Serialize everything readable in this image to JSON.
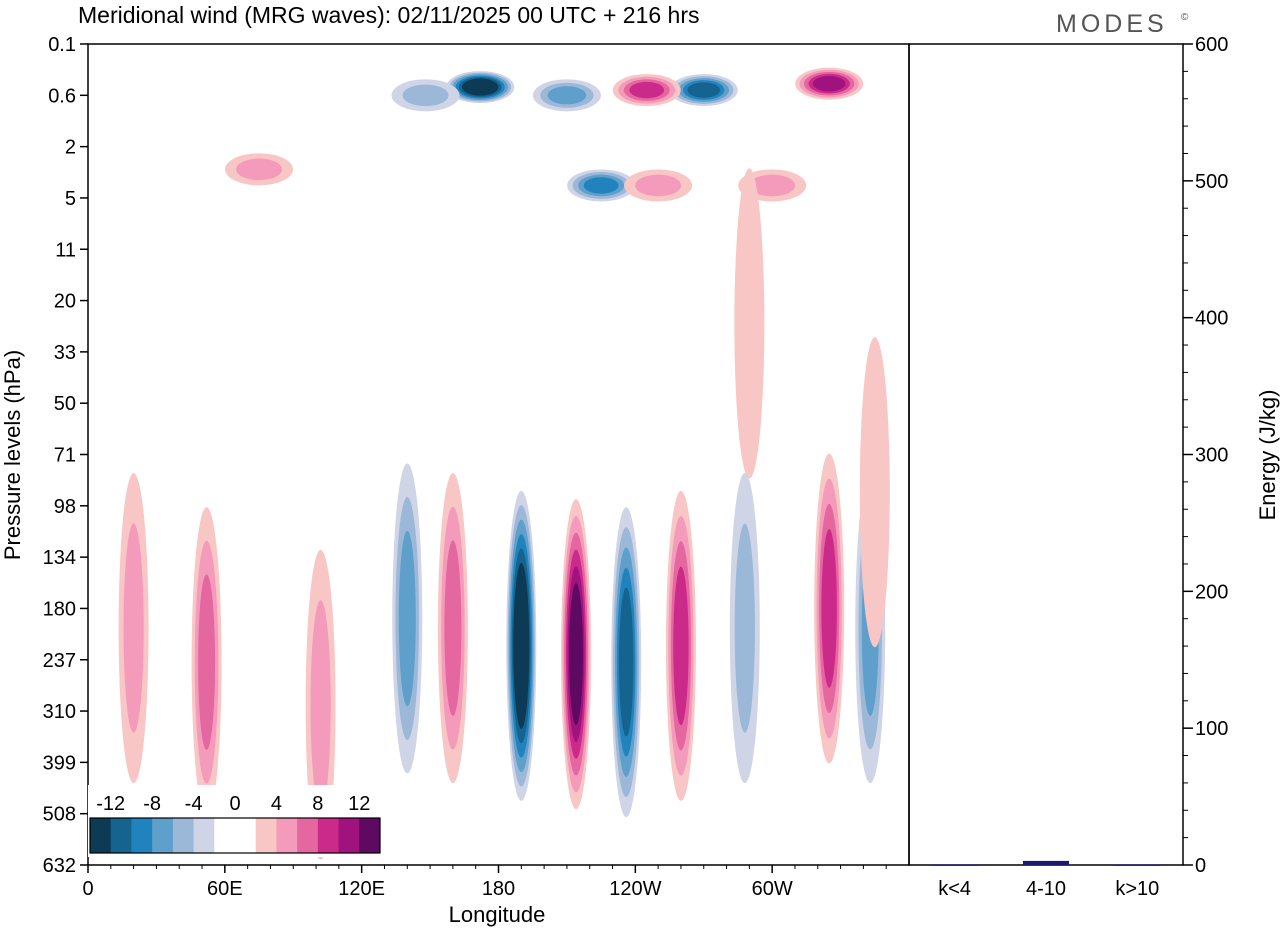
{
  "brand": {
    "logo_text": "MODES",
    "mark": "©"
  },
  "chart_data": [
    {
      "type": "heatmap",
      "title": "Meridional wind (MRG waves):  02/11/2025  00 UTC  + 216 hrs",
      "xlabel": "Longitude",
      "ylabel": "Pressure levels (hPa)",
      "x_ticks": [
        "0",
        "60E",
        "120E",
        "180",
        "120W",
        "60W"
      ],
      "x_tick_degrees": [
        0,
        60,
        120,
        180,
        240,
        300
      ],
      "xlim": [
        0,
        360
      ],
      "y_ticks": [
        "0.1",
        "0.6",
        "2",
        "5",
        "11",
        "20",
        "33",
        "50",
        "71",
        "98",
        "134",
        "180",
        "237",
        "310",
        "399",
        "508",
        "632"
      ],
      "y_order": "top-to-bottom",
      "colorbar": {
        "labels": [
          "-12",
          "-8",
          "-4",
          "0",
          "4",
          "8",
          "12"
        ],
        "levels": [
          -14,
          -12,
          -10,
          -8,
          -6,
          -4,
          -2,
          0,
          2,
          4,
          6,
          8,
          10,
          12,
          14
        ],
        "colors": [
          "#0d3b55",
          "#15638f",
          "#2183bd",
          "#5e9fcb",
          "#9bb8d8",
          "#cfd4e6",
          "#ffffff",
          "#ffffff",
          "#f8c6c4",
          "#f49bbb",
          "#e5679f",
          "#cc2a8a",
          "#a0127e",
          "#5e0a63"
        ]
      },
      "features": [
        {
          "lon": 172,
          "level": 0.45,
          "value": -14
        },
        {
          "lon": 148,
          "level": 0.6,
          "value": -4
        },
        {
          "lon": 270,
          "level": 0.5,
          "value": -10
        },
        {
          "lon": 245,
          "level": 0.5,
          "value": 8
        },
        {
          "lon": 325,
          "level": 0.4,
          "value": 10
        },
        {
          "lon": 210,
          "level": 0.6,
          "value": -6
        },
        {
          "lon": 225,
          "level": 4,
          "value": -8
        },
        {
          "lon": 250,
          "level": 4,
          "value": 4
        },
        {
          "lon": 300,
          "level": 4,
          "value": 4
        },
        {
          "lon": 75,
          "level": 3,
          "value": 4
        },
        {
          "lon": 290,
          "level": 25,
          "value": 2
        },
        {
          "lon": 190,
          "level": 220,
          "value": -14
        },
        {
          "lon": 214,
          "level": 230,
          "value": 12
        },
        {
          "lon": 236,
          "level": 240,
          "value": -10
        },
        {
          "lon": 260,
          "level": 220,
          "value": 8
        },
        {
          "lon": 160,
          "level": 200,
          "value": 6
        },
        {
          "lon": 140,
          "level": 190,
          "value": -6
        },
        {
          "lon": 52,
          "level": 240,
          "value": 6
        },
        {
          "lon": 102,
          "level": 300,
          "value": 4
        },
        {
          "lon": 325,
          "level": 180,
          "value": 8
        },
        {
          "lon": 343,
          "level": 200,
          "value": -6
        },
        {
          "lon": 20,
          "level": 200,
          "value": 4
        },
        {
          "lon": 288,
          "level": 200,
          "value": -4
        },
        {
          "lon": 345,
          "level": 90,
          "value": 2
        }
      ]
    },
    {
      "type": "bar",
      "ylabel": "Energy (J/kg)",
      "categories": [
        "k<4",
        "4-10",
        "k>10"
      ],
      "values": [
        0.5,
        3,
        0.5
      ],
      "ylim": [
        0,
        600
      ],
      "y_ticks": [
        0,
        100,
        200,
        300,
        400,
        500,
        600
      ],
      "bar_color": "#1a1a6e"
    }
  ]
}
